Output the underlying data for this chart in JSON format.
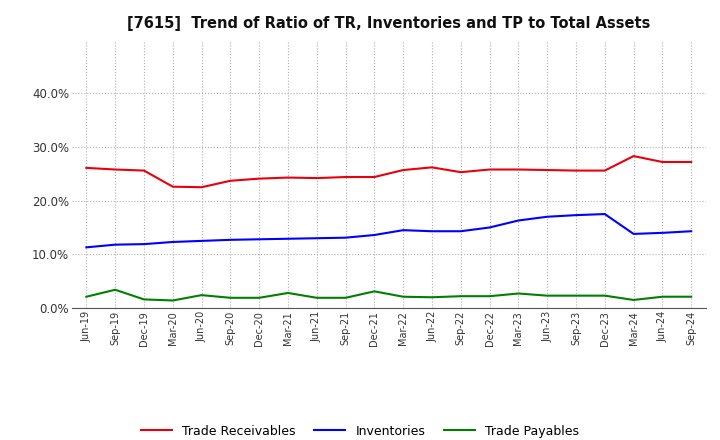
{
  "title": "[7615]  Trend of Ratio of TR, Inventories and TP to Total Assets",
  "labels": [
    "Jun-19",
    "Sep-19",
    "Dec-19",
    "Mar-20",
    "Jun-20",
    "Sep-20",
    "Dec-20",
    "Mar-21",
    "Jun-21",
    "Sep-21",
    "Dec-21",
    "Mar-22",
    "Jun-22",
    "Sep-22",
    "Dec-22",
    "Mar-23",
    "Jun-23",
    "Sep-23",
    "Dec-23",
    "Mar-24",
    "Jun-24",
    "Sep-24"
  ],
  "trade_receivables": [
    0.261,
    0.258,
    0.256,
    0.226,
    0.225,
    0.237,
    0.241,
    0.243,
    0.242,
    0.244,
    0.244,
    0.257,
    0.262,
    0.253,
    0.258,
    0.258,
    0.257,
    0.256,
    0.256,
    0.283,
    0.272,
    0.272
  ],
  "inventories": [
    0.113,
    0.118,
    0.119,
    0.123,
    0.125,
    0.127,
    0.128,
    0.129,
    0.13,
    0.131,
    0.136,
    0.145,
    0.143,
    0.143,
    0.15,
    0.163,
    0.17,
    0.173,
    0.175,
    0.138,
    0.14,
    0.143
  ],
  "trade_payables": [
    0.021,
    0.034,
    0.016,
    0.014,
    0.024,
    0.019,
    0.019,
    0.028,
    0.019,
    0.019,
    0.031,
    0.021,
    0.02,
    0.022,
    0.022,
    0.027,
    0.023,
    0.023,
    0.023,
    0.015,
    0.021,
    0.021
  ],
  "tr_color": "#e8000d",
  "inv_color": "#0000ff",
  "tp_color": "#008000",
  "ylim": [
    0.0,
    0.5
  ],
  "yticks": [
    0.0,
    0.1,
    0.2,
    0.3,
    0.4
  ],
  "background_color": "#ffffff",
  "grid_color": "#b0b0b0",
  "legend_labels": [
    "Trade Receivables",
    "Inventories",
    "Trade Payables"
  ]
}
